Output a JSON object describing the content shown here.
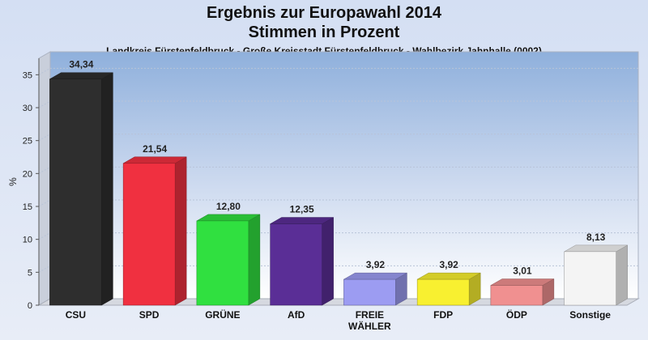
{
  "chart_data": {
    "type": "bar",
    "title_lines": [
      "Ergebnis zur Europawahl 2014",
      "Stimmen in Prozent"
    ],
    "subtitle": "Landkreis Fürstenfeldbruck - Große Kreisstadt Fürstenfeldbruck - Wahlbezirk Jahnhalle (0002)",
    "ylabel": "%",
    "ylim": [
      0,
      37.5
    ],
    "yticks": [
      0,
      5,
      10,
      15,
      20,
      25,
      30,
      35
    ],
    "grid": true,
    "categories": [
      "CSU",
      "SPD",
      "GRÜNE",
      "AfD",
      "FREIE WÄHLER",
      "FDP",
      "ÖDP",
      "Sonstige"
    ],
    "category_label_lines": [
      [
        "CSU"
      ],
      [
        "SPD"
      ],
      [
        "GRÜNE"
      ],
      [
        "AfD"
      ],
      [
        "FREIE",
        "WÄHLER"
      ],
      [
        "FDP"
      ],
      [
        "ÖDP"
      ],
      [
        "Sonstige"
      ]
    ],
    "values": [
      34.34,
      21.54,
      12.8,
      12.35,
      3.92,
      3.92,
      3.01,
      8.13
    ],
    "value_labels": [
      "34,34",
      "21,54",
      "12,80",
      "12,35",
      "3,92",
      "3,92",
      "3,01",
      "8,13"
    ],
    "colors": [
      "#2e2e2e",
      "#f03040",
      "#30e040",
      "#5a2e96",
      "#9c9cf2",
      "#f8f030",
      "#f09090",
      "#f4f4f4"
    ]
  }
}
